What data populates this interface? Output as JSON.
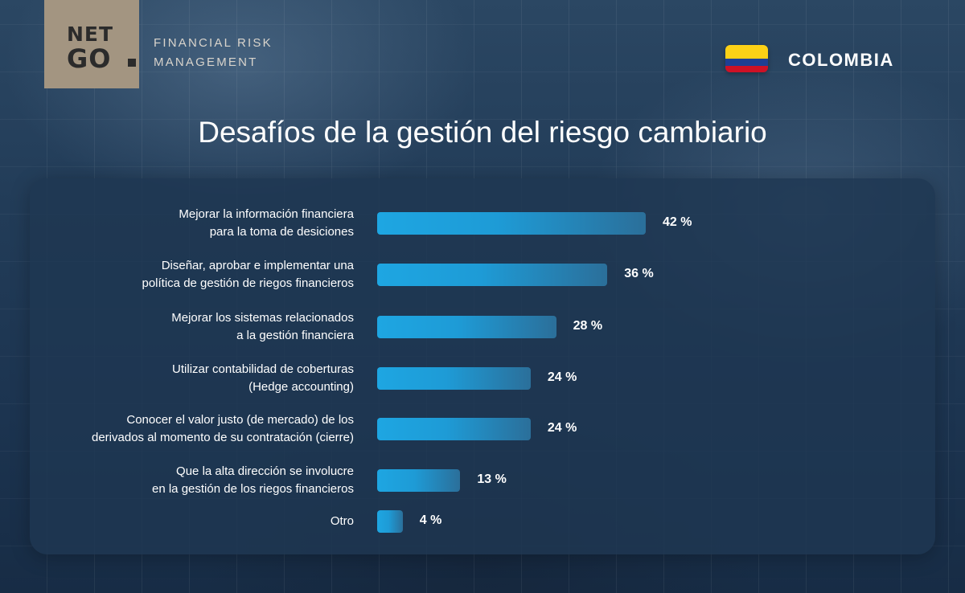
{
  "brand": {
    "logo_line1": "NET",
    "logo_line2": "GO",
    "tagline_line1": "FINANCIAL RISK",
    "tagline_line2": "MANAGEMENT",
    "logo_bg_color": "#a39581"
  },
  "country": {
    "name": "COLOMBIA",
    "flag_colors": [
      "#fcd116",
      "#1f3f93",
      "#ce1126"
    ]
  },
  "chart_data": {
    "type": "bar",
    "orientation": "horizontal",
    "title": "Desafíos de la gestión del riesgo cambiario",
    "categories": [
      [
        "Mejorar la información financiera",
        "para la toma de desiciones"
      ],
      [
        "Diseñar, aprobar e implementar una",
        "política de gestión de riegos financieros"
      ],
      [
        "Mejorar los sistemas relacionados",
        "a la gestión financiera"
      ],
      [
        "Utilizar contabilidad de coberturas",
        "(Hedge accounting)"
      ],
      [
        "Conocer el valor justo (de mercado) de los",
        "derivados al momento de su contratación (cierre)"
      ],
      [
        "Que la alta dirección se involucre",
        "en la gestión de los riegos financieros"
      ],
      [
        "Otro"
      ]
    ],
    "values": [
      42,
      36,
      28,
      24,
      24,
      13,
      4
    ],
    "value_labels": [
      "42 %",
      "36 %",
      "28 %",
      "24 %",
      "24 %",
      "13 %",
      "4 %"
    ],
    "unit": "%",
    "bar_color_start": "#1ea6e2",
    "bar_color_end": "#2b6f9a",
    "grid": false,
    "legend": "none"
  }
}
